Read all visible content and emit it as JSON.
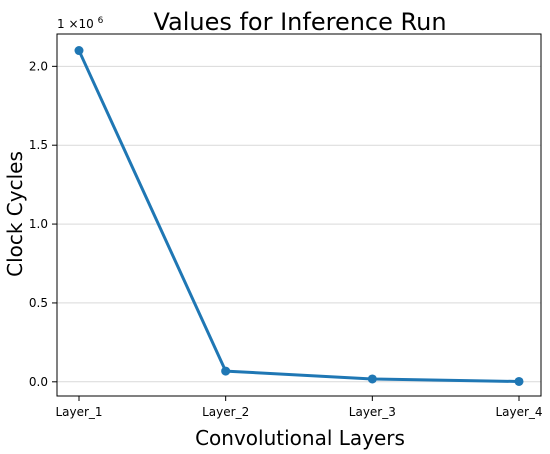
{
  "chart_data": {
    "type": "line",
    "title": "Values for Inference Run",
    "xlabel": "Convolutional Layers",
    "ylabel": "Clock Cycles",
    "y_multiplier_label": "1 ×10",
    "y_multiplier_exponent": "6",
    "categories": [
      "Layer_1",
      "Layer_2",
      "Layer_3",
      "Layer_4"
    ],
    "series": [
      {
        "values": [
          2100000,
          68000,
          18000,
          2000
        ]
      }
    ],
    "ylim": [
      -90000,
      2205000
    ],
    "y_ticks": [
      0,
      500000,
      1000000,
      1500000,
      2000000
    ],
    "y_tick_labels": [
      "0.0",
      "0.5",
      "1.0",
      "1.5",
      "2.0"
    ],
    "grid": "horizontal",
    "legend": "none",
    "colors": {
      "series": "#1f77b4",
      "grid": "#d9d9d9",
      "axis": "#000000"
    }
  }
}
